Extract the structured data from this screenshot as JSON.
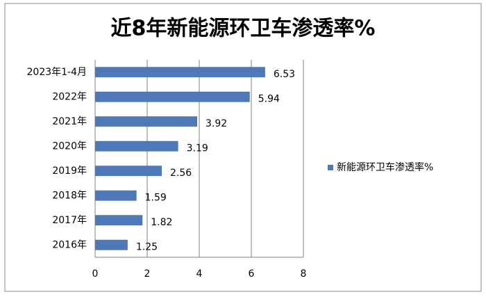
{
  "chart_data": {
    "type": "bar",
    "orientation": "horizontal",
    "title": "近8年新能源环卫车渗透率%",
    "categories": [
      "2023年1-4月",
      "2022年",
      "2021年",
      "2020年",
      "2019年",
      "2018年",
      "2017年",
      "2016年"
    ],
    "series": [
      {
        "name": "新能源环卫车渗透率%",
        "color": "#4f78b8",
        "values": [
          6.53,
          5.94,
          3.92,
          3.19,
          2.56,
          1.59,
          1.82,
          1.25
        ]
      }
    ],
    "xlim": [
      0,
      8
    ],
    "xticks": [
      0,
      2,
      4,
      6,
      8
    ],
    "grid": true,
    "legend": "right"
  }
}
